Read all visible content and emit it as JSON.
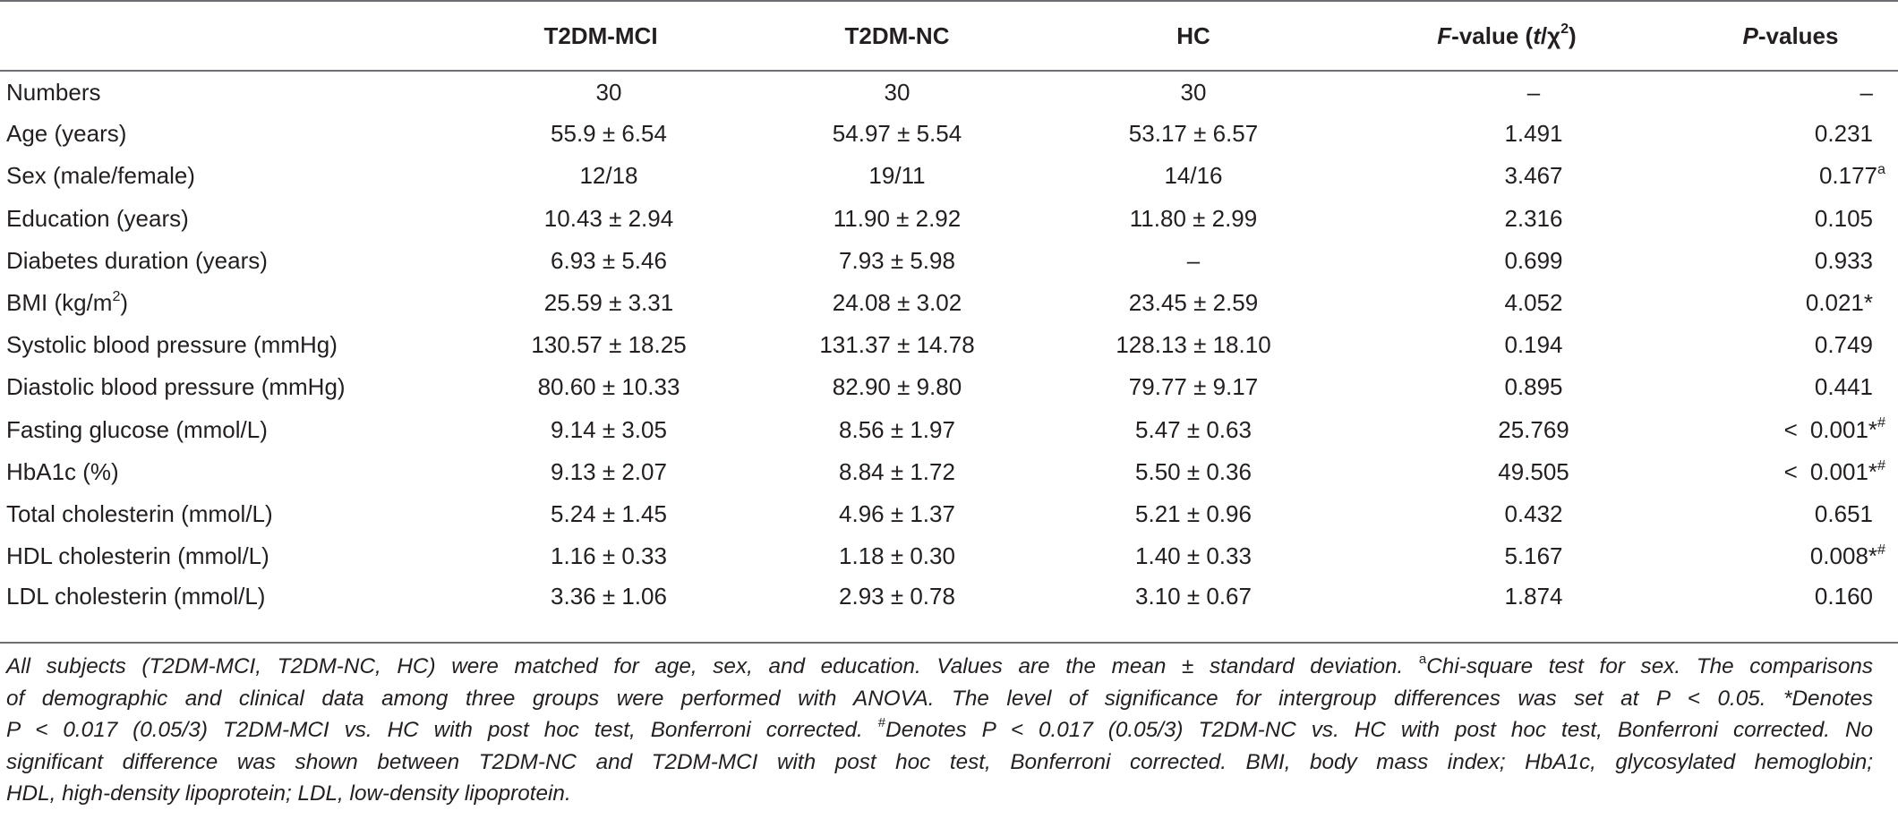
{
  "header": {
    "col0": "",
    "col1": "T2DM-MCI",
    "col2": "T2DM-NC",
    "col3": "HC",
    "col4_italic": "F",
    "col4_rest_a": "-value (",
    "col4_t": "t",
    "col4_slash": "/χ",
    "col4_sup": "2",
    "col4_close": ")",
    "col5_italic": "P",
    "col5_rest": "-values"
  },
  "rows": [
    {
      "label": "Numbers",
      "label_sup": "",
      "label_tail": "",
      "mci": "30",
      "nc": "30",
      "hc": "30",
      "f": "–",
      "p": "–",
      "p_sup": "",
      "p_prefix": ""
    },
    {
      "label": "Age (years)",
      "label_sup": "",
      "label_tail": "",
      "mci": "55.9 ± 6.54",
      "nc": "54.97 ± 5.54",
      "hc": "53.17 ± 6.57",
      "f": "1.491",
      "p": "0.231",
      "p_sup": "",
      "p_prefix": ""
    },
    {
      "label": "Sex (male/female)",
      "label_sup": "",
      "label_tail": "",
      "mci": "12/18",
      "nc": "19/11",
      "hc": "14/16",
      "f": "3.467",
      "p": "0.177",
      "p_sup": "a",
      "p_prefix": ""
    },
    {
      "label": "Education (years)",
      "label_sup": "",
      "label_tail": "",
      "mci": "10.43 ± 2.94",
      "nc": "11.90 ± 2.92",
      "hc": "11.80 ± 2.99",
      "f": "2.316",
      "p": "0.105",
      "p_sup": "",
      "p_prefix": ""
    },
    {
      "label": "Diabetes duration (years)",
      "label_sup": "",
      "label_tail": "",
      "mci": "6.93 ± 5.46",
      "nc": "7.93 ± 5.98",
      "hc": "–",
      "f": "0.699",
      "p": "0.933",
      "p_sup": "",
      "p_prefix": ""
    },
    {
      "label": "BMI (kg/m",
      "label_sup": "2",
      "label_tail": ")",
      "mci": "25.59 ± 3.31",
      "nc": "24.08 ± 3.02",
      "hc": "23.45 ± 2.59",
      "f": "4.052",
      "p": "0.021*",
      "p_sup": "",
      "p_prefix": ""
    },
    {
      "label": "Systolic blood pressure (mmHg)",
      "label_sup": "",
      "label_tail": "",
      "mci": "130.57 ± 18.25",
      "nc": "131.37 ± 14.78",
      "hc": "128.13 ± 18.10",
      "f": "0.194",
      "p": "0.749",
      "p_sup": "",
      "p_prefix": ""
    },
    {
      "label": "Diastolic blood pressure (mmHg)",
      "label_sup": "",
      "label_tail": "",
      "mci": "80.60 ± 10.33",
      "nc": "82.90 ± 9.80",
      "hc": "79.77 ± 9.17",
      "f": "0.895",
      "p": "0.441",
      "p_sup": "",
      "p_prefix": ""
    },
    {
      "label": "Fasting glucose (mmol/L)",
      "label_sup": "",
      "label_tail": "",
      "mci": "9.14 ± 3.05",
      "nc": "8.56 ± 1.97",
      "hc": "5.47 ± 0.63",
      "f": "25.769",
      "p": "0.001*",
      "p_sup": "#",
      "p_prefix": "<"
    },
    {
      "label": "HbA1c (%)",
      "label_sup": "",
      "label_tail": "",
      "mci": "9.13 ± 2.07",
      "nc": "8.84 ± 1.72",
      "hc": "5.50 ± 0.36",
      "f": "49.505",
      "p": "0.001*",
      "p_sup": "#",
      "p_prefix": "<"
    },
    {
      "label": "Total cholesterin (mmol/L)",
      "label_sup": "",
      "label_tail": "",
      "mci": "5.24 ± 1.45",
      "nc": "4.96 ± 1.37",
      "hc": "5.21 ± 0.96",
      "f": "0.432",
      "p": "0.651",
      "p_sup": "",
      "p_prefix": ""
    },
    {
      "label": "HDL cholesterin (mmol/L)",
      "label_sup": "",
      "label_tail": "",
      "mci": "1.16 ± 0.33",
      "nc": "1.18 ± 0.30",
      "hc": "1.40 ± 0.33",
      "f": "5.167",
      "p": "0.008*",
      "p_sup": "#",
      "p_prefix": ""
    },
    {
      "label": "LDL cholesterin (mmol/L)",
      "label_sup": "",
      "label_tail": "",
      "mci": "3.36 ± 1.06",
      "nc": "2.93 ± 0.78",
      "hc": "3.10 ± 0.67",
      "f": "1.874",
      "p": "0.160",
      "p_sup": "",
      "p_prefix": ""
    }
  ],
  "footnote": {
    "l1_a": "All subjects (T2DM-MCI, T2DM-NC, HC) were matched for age, sex, and education. Values are the mean ± standard deviation. ",
    "l1_sup": "a",
    "l1_b": "Chi-square test for sex. The comparisons",
    "l2": "of demographic and clinical data among three groups were performed with ANOVA. The level of significance for intergroup differences was set at P < 0.05. *Denotes",
    "l3_a": "P < 0.017 (0.05/3) T2DM-MCI vs. HC with post hoc test, Bonferroni corrected. ",
    "l3_sup": "#",
    "l3_b": "Denotes P < 0.017 (0.05/3) T2DM-NC vs. HC with post hoc test, Bonferroni corrected. No",
    "l4": "significant difference was shown between T2DM-NC and T2DM-MCI with post hoc test, Bonferroni corrected. BMI, body mass index; HbA1c, glycosylated hemoglobin;",
    "l5": "HDL, high-density lipoprotein; LDL, low-density lipoprotein."
  }
}
